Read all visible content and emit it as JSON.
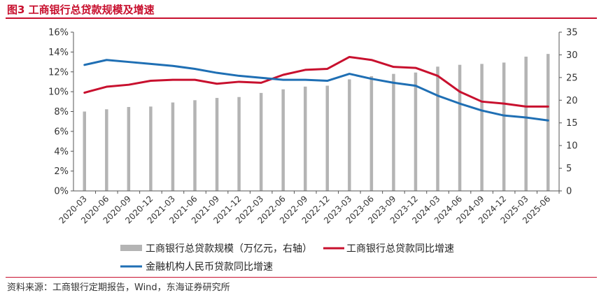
{
  "header": {
    "title": "图3  工商银行总贷款规模及增速"
  },
  "footer": {
    "source": "资料来源：工商银行定期报告，Wind，东海证券研究所"
  },
  "chart_data": {
    "type": "bar+line",
    "categories": [
      "2020-03",
      "2020-06",
      "2020-09",
      "2020-12",
      "2021-03",
      "2021-06",
      "2021-09",
      "2021-12",
      "2022-03",
      "2022-06",
      "2022-09",
      "2022-12",
      "2023-03",
      "2023-06",
      "2023-09",
      "2023-12",
      "2024-03",
      "2024-06",
      "2024-09",
      "2024-12",
      "2025-03",
      "2025-06"
    ],
    "left_axis": {
      "min": 0,
      "max": 16,
      "step": 2,
      "ticks": [
        "0%",
        "2%",
        "4%",
        "6%",
        "8%",
        "10%",
        "12%",
        "14%",
        "16%"
      ]
    },
    "right_axis": {
      "min": 0,
      "max": 35,
      "step": 5,
      "ticks": [
        "0",
        "5",
        "10",
        "15",
        "20",
        "25",
        "30",
        "35"
      ]
    },
    "series": [
      {
        "name": "工商银行总贷款规模（万亿元，右轴）",
        "kind": "bar",
        "axis": "right",
        "color": "#b4b4b4",
        "values": [
          17.5,
          18.0,
          18.5,
          18.6,
          19.5,
          20.0,
          20.5,
          20.7,
          21.6,
          22.4,
          23.0,
          23.2,
          24.6,
          25.3,
          25.8,
          26.1,
          27.4,
          27.8,
          28.0,
          28.3,
          29.6,
          30.2
        ]
      },
      {
        "name": "工商银行总贷款同比增速",
        "kind": "line",
        "axis": "left",
        "color": "#c8102e",
        "values": [
          9.9,
          10.5,
          10.7,
          11.1,
          11.2,
          11.2,
          10.8,
          11.0,
          10.9,
          11.7,
          12.2,
          12.3,
          13.5,
          13.2,
          12.5,
          12.4,
          11.6,
          10.0,
          9.0,
          8.8,
          8.5,
          8.5
        ]
      },
      {
        "name": "金融机构人民币贷款同比增速",
        "kind": "line",
        "axis": "left",
        "color": "#1f6fb4",
        "values": [
          12.7,
          13.2,
          13.0,
          12.8,
          12.6,
          12.3,
          11.9,
          11.6,
          11.4,
          11.2,
          11.2,
          11.1,
          11.8,
          11.3,
          10.9,
          10.6,
          9.6,
          8.8,
          8.1,
          7.6,
          7.4,
          7.1
        ]
      }
    ]
  }
}
